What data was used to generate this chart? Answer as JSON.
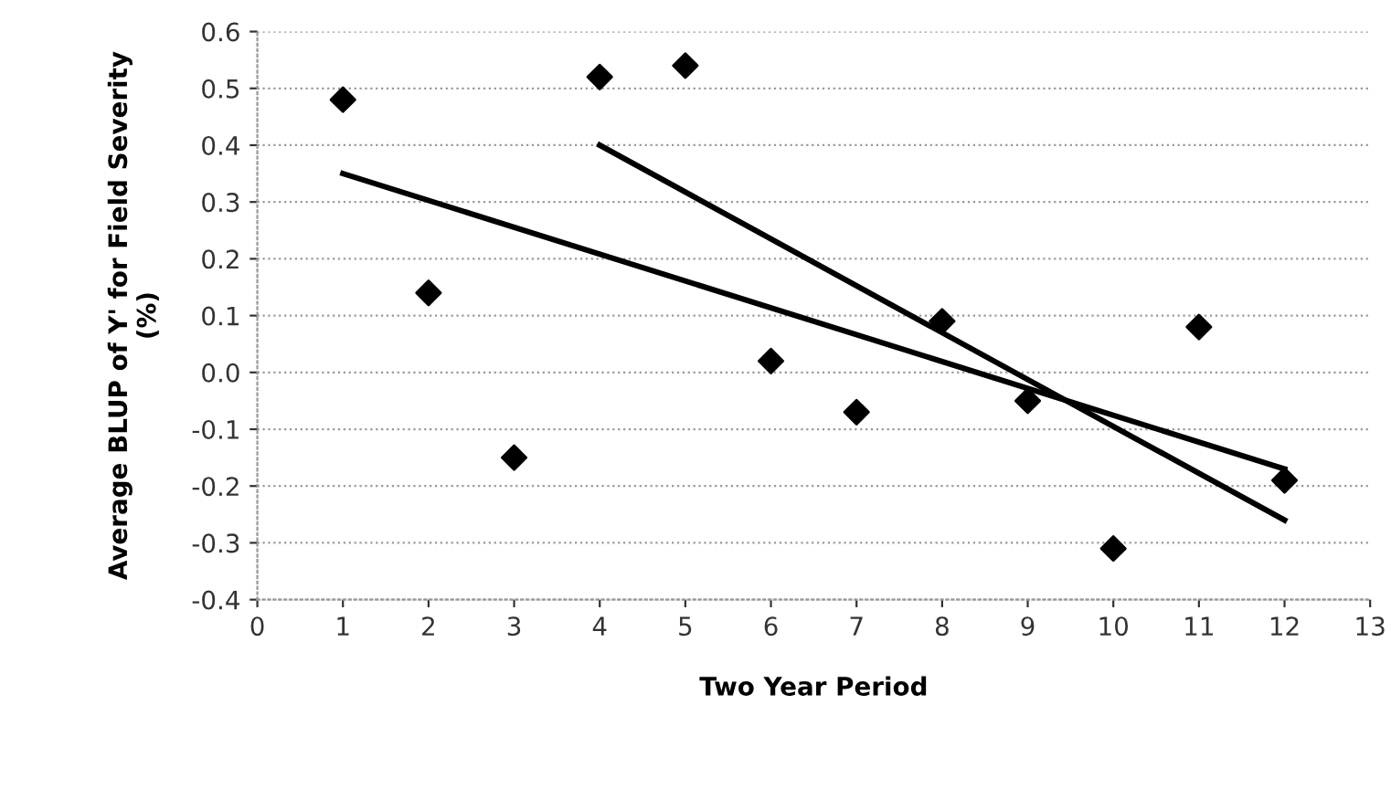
{
  "chart_data": {
    "type": "scatter",
    "xlabel": "Two Year Period",
    "ylabel": "Average BLUP of Y' for Field Severity\n(%)",
    "xlim": [
      0,
      13
    ],
    "xticks": [
      0,
      1,
      2,
      3,
      4,
      5,
      6,
      7,
      8,
      9,
      10,
      11,
      12,
      13
    ],
    "ylim": [
      -0.4,
      0.6
    ],
    "yticks": [
      {
        "value": -0.4,
        "label": "-0.4"
      },
      {
        "value": -0.3,
        "label": "-0.3"
      },
      {
        "value": -0.2,
        "label": "-0.2"
      },
      {
        "value": -0.1,
        "label": "-0.1"
      },
      {
        "value": 0.0,
        "label": "0.0"
      },
      {
        "value": 0.1,
        "label": "0.1"
      },
      {
        "value": 0.2,
        "label": "0.2"
      },
      {
        "value": 0.3,
        "label": "0.3"
      },
      {
        "value": 0.4,
        "label": "0.4"
      },
      {
        "value": 0.5,
        "label": "0.5"
      },
      {
        "value": 0.6,
        "label": "0.6"
      }
    ],
    "grid": "y",
    "series": [
      {
        "marker": "diamond",
        "color": "#000000",
        "x": [
          1,
          2,
          3,
          4,
          5,
          6,
          7,
          8,
          9,
          10,
          11,
          12
        ],
        "values": [
          0.48,
          0.14,
          -0.15,
          0.52,
          0.54,
          0.02,
          -0.07,
          0.09,
          -0.05,
          -0.31,
          0.08,
          -0.19
        ]
      },
      {
        "type": "line",
        "color": "#000000",
        "x": [
          1,
          12
        ],
        "values": [
          0.35,
          -0.17
        ]
      },
      {
        "type": "line",
        "color": "#000000",
        "x": [
          4,
          12
        ],
        "values": [
          0.4,
          -0.26
        ]
      }
    ]
  }
}
